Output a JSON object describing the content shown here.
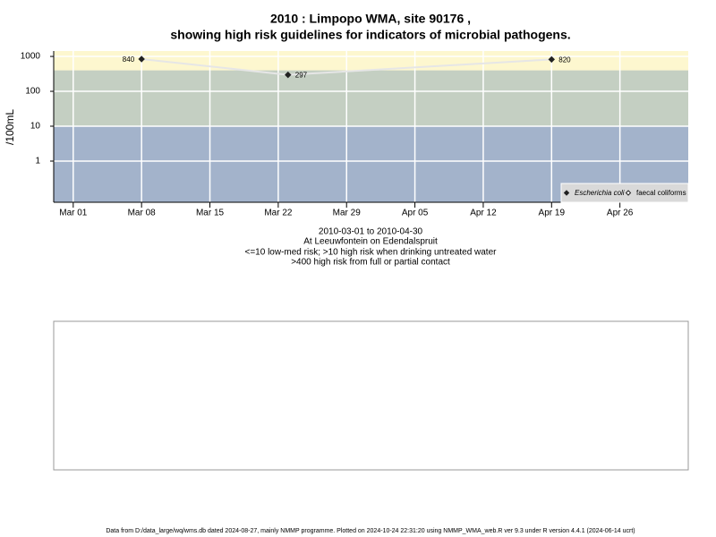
{
  "chart_data": {
    "type": "line",
    "title": "2010 : Limpopo WMA, site 90176 ,",
    "subtitle": "showing high risk guidelines for indicators of microbial pathogens.",
    "y_label": "/100mL",
    "y_log": true,
    "grid": true,
    "legend_position": "bottom-right",
    "x": [
      "2010-03-08",
      "2010-03-23",
      "2010-04-19"
    ],
    "series": [
      {
        "name": "Escherichia coli",
        "color": "#222222",
        "line_color": "#e6e6e6",
        "marker": "filled-diamond",
        "values": [
          840,
          297,
          820
        ]
      },
      {
        "name": "faecal coliforms",
        "color": "#222222",
        "marker": "open-diamond",
        "values": [
          null,
          null,
          null
        ]
      }
    ],
    "thresholds": [
      10,
      400
    ],
    "band_colors": [
      "#a3b3cb",
      "#c4cfc2",
      "#fdf7cf"
    ],
    "xlim": [
      "2010-02-27",
      "2010-05-03"
    ],
    "xticks": [
      {
        "value": "2010-03-01",
        "label": "Mar 01"
      },
      {
        "value": "2010-03-08",
        "label": "Mar 08"
      },
      {
        "value": "2010-03-15",
        "label": "Mar 15"
      },
      {
        "value": "2010-03-22",
        "label": "Mar 22"
      },
      {
        "value": "2010-03-29",
        "label": "Mar 29"
      },
      {
        "value": "2010-04-05",
        "label": "Apr 05"
      },
      {
        "value": "2010-04-12",
        "label": "Apr 12"
      },
      {
        "value": "2010-04-19",
        "label": "Apr 19"
      },
      {
        "value": "2010-04-26",
        "label": "Apr 26"
      }
    ],
    "ylim": [
      0.066,
      1430
    ],
    "yticks": [
      1,
      10,
      100,
      1000
    ],
    "captions": [
      "2010-03-01 to 2010-04-30",
      "At Leeuwfontein on Edendalspruit",
      "<=10 low-med risk; >10 high risk when drinking untreated water",
      ">400 high risk from full or partial contact"
    ]
  },
  "footer": "Data from D:/data_large/wq/wms.db dated 2024-08-27, mainly NMMP programme. Plotted on 2024-10-24 22:31:20 using NMMP_WMA_web.R ver 9.3 under R version 4.4.1 (2024-06-14 ucrt)"
}
